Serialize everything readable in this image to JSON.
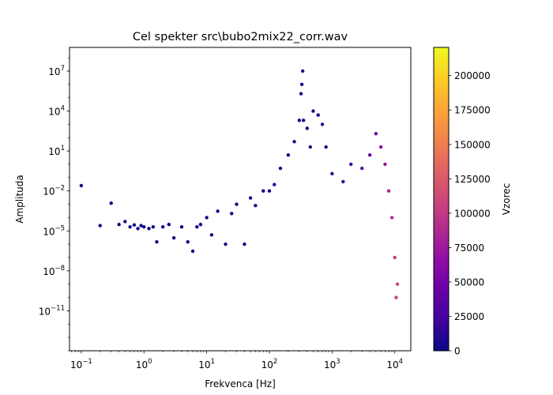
{
  "chart_data": {
    "type": "scatter",
    "title": "Cel spekter src\\bubo2mix22_corr.wav",
    "xlabel": "Frekvenca [Hz]",
    "ylabel": "Amplituda",
    "xscale": "log",
    "yscale": "log",
    "xlim": [
      0.065,
      18000
    ],
    "ylim": [
      1e-14,
      600000000.0
    ],
    "x_ticks": [
      {
        "value": 0.1,
        "base": "10",
        "exp": "−1"
      },
      {
        "value": 1,
        "base": "10",
        "exp": "0"
      },
      {
        "value": 10,
        "base": "10",
        "exp": "1"
      },
      {
        "value": 100,
        "base": "10",
        "exp": "2"
      },
      {
        "value": 1000,
        "base": "10",
        "exp": "3"
      },
      {
        "value": 10000,
        "base": "10",
        "exp": "4"
      }
    ],
    "y_ticks": [
      {
        "value": 1e-11,
        "base": "10",
        "exp": "−11"
      },
      {
        "value": 1e-08,
        "base": "10",
        "exp": "−8"
      },
      {
        "value": 1e-05,
        "base": "10",
        "exp": "−5"
      },
      {
        "value": 0.01,
        "base": "10",
        "exp": "−2"
      },
      {
        "value": 10,
        "base": "10",
        "exp": "1"
      },
      {
        "value": 10000,
        "base": "10",
        "exp": "4"
      },
      {
        "value": 10000000,
        "base": "10",
        "exp": "7"
      }
    ],
    "colorbar": {
      "label": "Vzorec",
      "colormap": "plasma",
      "range": [
        0,
        220500
      ],
      "ticks": [
        {
          "value": 0,
          "label": "0"
        },
        {
          "value": 25000,
          "label": "25000"
        },
        {
          "value": 50000,
          "label": "50000"
        },
        {
          "value": 75000,
          "label": "75000"
        },
        {
          "value": 100000,
          "label": "100000"
        },
        {
          "value": 125000,
          "label": "125000"
        },
        {
          "value": 150000,
          "label": "150000"
        },
        {
          "value": 175000,
          "label": "175000"
        },
        {
          "value": 200000,
          "label": "200000"
        }
      ]
    },
    "grid": false,
    "series": [
      {
        "points": [
          [
            0.1,
            0.025
          ],
          [
            0.2,
            2.5e-05
          ],
          [
            0.3,
            0.0012
          ],
          [
            0.4,
            3e-05
          ],
          [
            0.5,
            5e-05
          ],
          [
            0.6,
            2e-05
          ],
          [
            0.7,
            2.8e-05
          ],
          [
            0.8,
            1.5e-05
          ],
          [
            0.9,
            2.5e-05
          ],
          [
            1.0,
            2e-05
          ],
          [
            1.2,
            1.5e-05
          ],
          [
            1.4,
            2e-05
          ],
          [
            1.6,
            1.5e-06
          ],
          [
            2,
            2e-05
          ],
          [
            2.5,
            3e-05
          ],
          [
            3,
            3e-06
          ],
          [
            4,
            2e-05
          ],
          [
            5,
            1.5e-06
          ],
          [
            6,
            3e-07
          ],
          [
            7,
            2e-05
          ],
          [
            8,
            3e-05
          ],
          [
            10,
            0.0001
          ],
          [
            12,
            5e-06
          ],
          [
            15,
            0.0003
          ],
          [
            20,
            1e-06
          ],
          [
            25,
            0.0002
          ],
          [
            30,
            0.001
          ],
          [
            40,
            1e-06
          ],
          [
            50,
            0.003
          ],
          [
            60,
            0.0008
          ],
          [
            80,
            0.01
          ],
          [
            100,
            0.01
          ],
          [
            120,
            0.03
          ],
          [
            150,
            0.5
          ],
          [
            200,
            5
          ],
          [
            250,
            50
          ],
          [
            300,
            2000
          ],
          [
            320,
            200000
          ],
          [
            330,
            1000000
          ],
          [
            340,
            10000000
          ],
          [
            350,
            2000
          ],
          [
            400,
            500
          ],
          [
            450,
            20
          ],
          [
            500,
            10000
          ],
          [
            600,
            5000
          ],
          [
            700,
            1000
          ],
          [
            800,
            20
          ],
          [
            1000,
            0.2
          ],
          [
            1500,
            0.05
          ],
          [
            2000,
            1
          ],
          [
            3000,
            0.5
          ],
          [
            4000,
            5
          ],
          [
            5000,
            200
          ],
          [
            6000,
            20
          ],
          [
            7000,
            1
          ],
          [
            8000,
            0.01
          ],
          [
            9000,
            0.0001
          ],
          [
            10000,
            1e-07
          ],
          [
            10500,
            1e-10
          ],
          [
            11000,
            1e-09
          ]
        ]
      }
    ]
  }
}
